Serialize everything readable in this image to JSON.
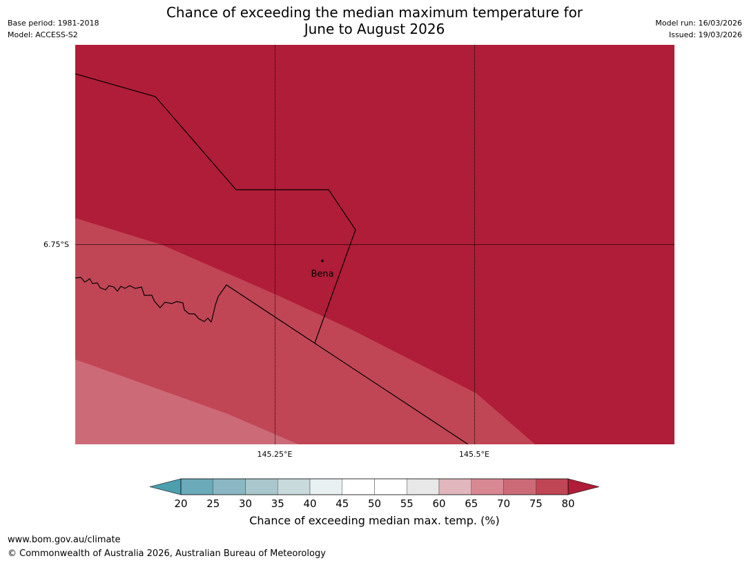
{
  "title_line1": "Chance of exceeding the median maximum temperature for",
  "title_line2": "June to August 2026",
  "meta_left": [
    "Base period: 1981-2018",
    "Model: ACCESS-S2"
  ],
  "meta_right": [
    "Model run: 16/03/2026",
    "Issued: 19/03/2026"
  ],
  "map": {
    "lon_labels": [
      "145.25°E",
      "145.5°E"
    ],
    "lat_labels": [
      "6.75°S"
    ],
    "place": "Bena"
  },
  "colorbar": {
    "title": "Chance of exceeding median max. temp. (%)",
    "ticks": [
      "20",
      "25",
      "30",
      "35",
      "40",
      "45",
      "50",
      "55",
      "60",
      "65",
      "70",
      "75",
      "80"
    ],
    "colors": [
      "#6aaab9",
      "#8ab7c3",
      "#a9c7cd",
      "#c9dadd",
      "#e9f0f1",
      "#ffffff",
      "#ffffff",
      "#e8e8e8",
      "#e1b6bc",
      "#d88893",
      "#cc6b77",
      "#c04655"
    ],
    "under_color": "#4d9fae",
    "over_color": "#b01d38"
  },
  "footer": {
    "url": "www.bom.gov.au/climate",
    "copyright": "© Commonwealth of Australia 2026, Australian Bureau of Meteorology"
  }
}
